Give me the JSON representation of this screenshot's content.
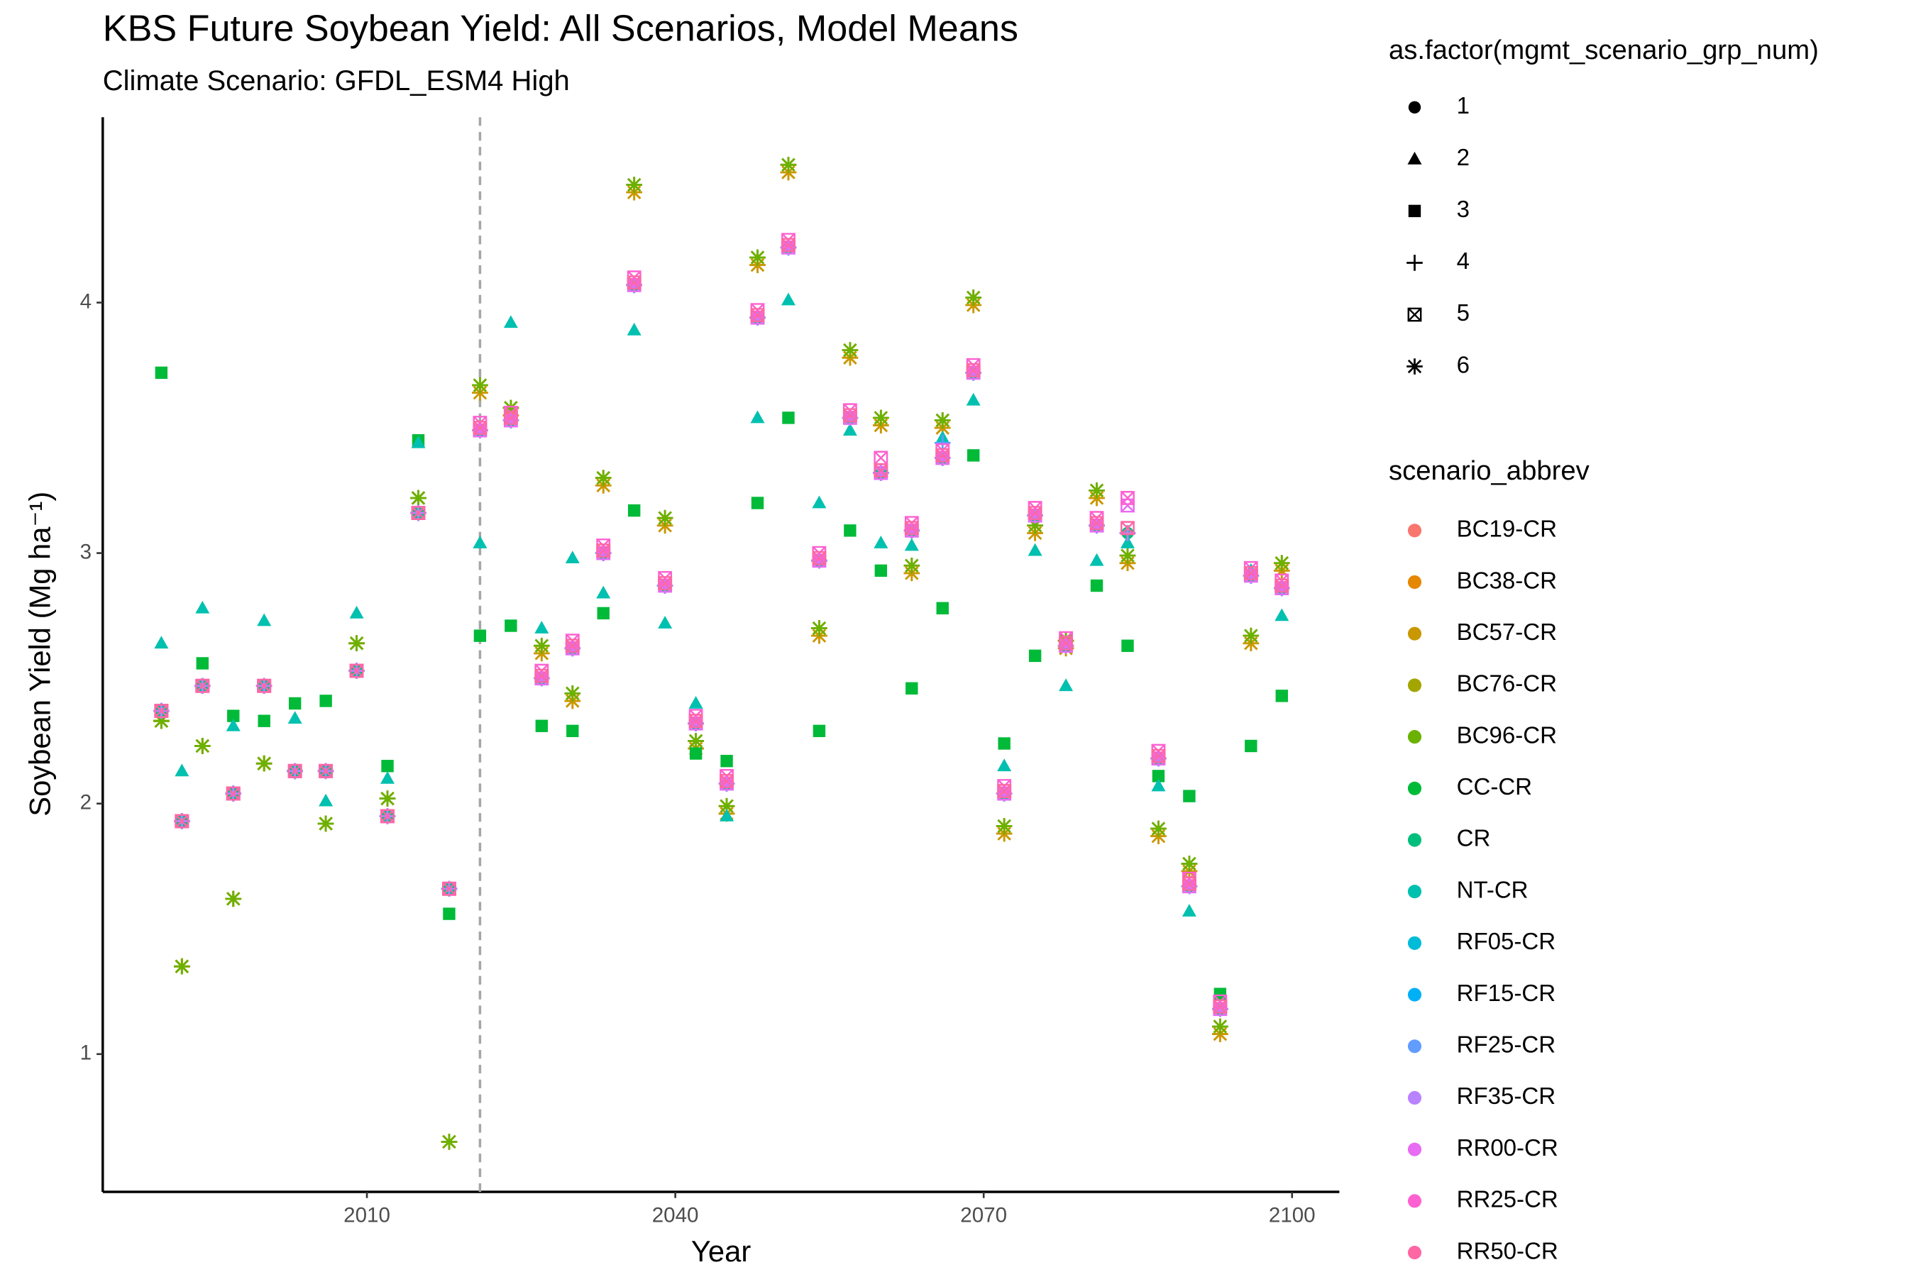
{
  "chart_data": {
    "type": "scatter",
    "title": "KBS Future Soybean Yield: All Scenarios, Model Means",
    "subtitle": "Climate Scenario: GFDL_ESM4 High",
    "x_label": "Year",
    "y_label": "Soybean Yield (Mg ha⁻¹)",
    "xlim": [
      1984.3,
      2104.6
    ],
    "xticks": [
      2010,
      2040,
      2070,
      2100
    ],
    "ylim": [
      0.45,
      4.74
    ],
    "yticks": [
      1,
      2,
      3,
      4
    ],
    "reference_line_x": 2021,
    "shape_legend": {
      "title": "as.factor(mgmt_scenario_grp_num)",
      "labels": [
        "1",
        "2",
        "3",
        "4",
        "5",
        "6"
      ]
    },
    "color_legend_title": "scenario_abbrev",
    "x": [
      1990,
      1992,
      1994,
      1997,
      2000,
      2003,
      2006,
      2009,
      2012,
      2015,
      2018,
      2021,
      2024,
      2027,
      2030,
      2033,
      2036,
      2039,
      2042,
      2045,
      2048,
      2051,
      2054,
      2057,
      2060,
      2063,
      2066,
      2069,
      2072,
      2075,
      2078,
      2081,
      2084,
      2087,
      2090,
      2093,
      2096,
      2099
    ],
    "series": [
      {
        "name": "BC19-CR",
        "color": "#F8766D",
        "shape": "6",
        "values": [
          2.33,
          1.35,
          2.23,
          1.62,
          2.16,
          2.13,
          1.92,
          2.64,
          2.02,
          3.22,
          0.65,
          3.67,
          3.58,
          2.63,
          2.44,
          3.3,
          4.47,
          3.14,
          2.25,
          1.99,
          4.18,
          4.55,
          2.7,
          3.81,
          3.54,
          2.95,
          3.53,
          4.02,
          1.91,
          3.11,
          2.65,
          3.25,
          2.99,
          1.9,
          1.76,
          1.11,
          2.67,
          2.96
        ]
      },
      {
        "name": "BC38-CR",
        "color": "#E58700",
        "shape": "6",
        "values": [
          2.33,
          1.35,
          2.23,
          1.62,
          2.16,
          2.13,
          1.92,
          2.64,
          2.02,
          3.22,
          0.65,
          3.64,
          3.55,
          2.6,
          2.41,
          3.27,
          4.44,
          3.11,
          2.22,
          1.96,
          4.15,
          4.52,
          2.67,
          3.78,
          3.51,
          2.92,
          3.5,
          3.99,
          1.88,
          3.08,
          2.62,
          3.22,
          2.96,
          1.87,
          1.73,
          1.08,
          2.64,
          2.93
        ]
      },
      {
        "name": "BC57-CR",
        "color": "#C99800",
        "shape": "6",
        "values": [
          2.33,
          1.35,
          2.23,
          1.62,
          2.16,
          2.13,
          1.92,
          2.64,
          2.02,
          3.22,
          0.65,
          3.64,
          3.55,
          2.6,
          2.41,
          3.27,
          4.44,
          3.11,
          2.22,
          1.96,
          4.15,
          4.52,
          2.67,
          3.78,
          3.51,
          2.92,
          3.5,
          3.99,
          1.88,
          3.08,
          2.62,
          3.22,
          2.96,
          1.87,
          1.73,
          1.08,
          2.64,
          2.93
        ]
      },
      {
        "name": "BC76-CR",
        "color": "#A3A500",
        "shape": "6",
        "values": [
          2.33,
          1.35,
          2.23,
          1.62,
          2.16,
          2.13,
          1.92,
          2.64,
          2.02,
          3.22,
          0.65,
          3.67,
          3.58,
          2.63,
          2.44,
          3.3,
          4.47,
          3.14,
          2.25,
          1.99,
          4.18,
          4.55,
          2.7,
          3.81,
          3.54,
          2.95,
          3.53,
          4.02,
          1.91,
          3.11,
          2.65,
          3.25,
          2.99,
          1.9,
          1.76,
          1.11,
          2.67,
          2.96
        ]
      },
      {
        "name": "BC96-CR",
        "color": "#6BB100",
        "shape": "6",
        "values": [
          2.33,
          1.35,
          2.23,
          1.62,
          2.16,
          2.13,
          1.92,
          2.64,
          2.02,
          3.22,
          0.65,
          3.67,
          3.58,
          2.63,
          2.44,
          3.3,
          4.47,
          3.14,
          2.25,
          1.99,
          4.18,
          4.55,
          2.7,
          3.81,
          3.54,
          2.95,
          3.53,
          4.02,
          1.91,
          3.11,
          2.65,
          3.25,
          2.99,
          1.9,
          1.76,
          1.11,
          2.67,
          2.96
        ]
      },
      {
        "name": "CC-CR",
        "color": "#00BA38",
        "shape": "3",
        "values": [
          3.72,
          null,
          2.56,
          2.35,
          2.33,
          2.4,
          2.41,
          null,
          2.15,
          3.45,
          1.56,
          2.67,
          2.71,
          2.31,
          2.29,
          2.76,
          3.17,
          null,
          2.2,
          2.17,
          3.2,
          3.54,
          2.29,
          3.09,
          2.93,
          2.46,
          2.78,
          3.39,
          2.24,
          2.59,
          null,
          2.87,
          2.63,
          2.11,
          2.03,
          1.24,
          2.23,
          2.43
        ]
      },
      {
        "name": "CR",
        "color": "#00BF7D",
        "shape": "1",
        "values": [
          2.37,
          1.93,
          2.47,
          2.04,
          2.47,
          2.13,
          2.13,
          2.53,
          1.95,
          3.16,
          1.66,
          3.49,
          3.53,
          2.5,
          2.62,
          3.0,
          4.07,
          2.87,
          2.32,
          2.08,
          3.94,
          4.22,
          2.97,
          3.54,
          3.32,
          3.09,
          3.38,
          3.72,
          2.04,
          3.15,
          2.63,
          3.11,
          3.08,
          2.18,
          1.67,
          1.18,
          2.91,
          2.86
        ]
      },
      {
        "name": "NT-CR",
        "color": "#00C0AF",
        "shape": "2",
        "values": [
          2.64,
          2.13,
          2.78,
          2.31,
          2.73,
          2.34,
          2.01,
          2.76,
          2.1,
          3.44,
          null,
          3.04,
          3.92,
          2.7,
          2.98,
          2.84,
          3.89,
          2.72,
          2.4,
          1.95,
          3.54,
          4.01,
          3.2,
          3.49,
          3.04,
          3.03,
          3.46,
          3.61,
          2.15,
          3.01,
          2.47,
          2.97,
          3.04,
          2.07,
          1.57,
          1.19,
          2.93,
          2.75
        ]
      },
      {
        "name": "RF05-CR",
        "color": "#00BCD8",
        "shape": "4",
        "values": [
          2.37,
          1.93,
          2.47,
          2.04,
          2.47,
          2.13,
          2.13,
          2.53,
          1.95,
          3.16,
          1.66,
          3.49,
          3.53,
          2.5,
          2.62,
          3.0,
          4.07,
          2.87,
          2.32,
          2.08,
          3.94,
          4.22,
          2.97,
          3.54,
          3.32,
          3.09,
          3.38,
          3.72,
          2.04,
          3.15,
          2.63,
          3.11,
          3.08,
          2.18,
          1.67,
          1.18,
          2.91,
          2.86
        ]
      },
      {
        "name": "RF15-CR",
        "color": "#00B0F6",
        "shape": "4",
        "values": [
          2.37,
          1.93,
          2.47,
          2.04,
          2.47,
          2.13,
          2.13,
          2.53,
          1.95,
          3.16,
          1.66,
          3.49,
          3.53,
          2.5,
          2.62,
          3.0,
          4.07,
          2.87,
          2.32,
          2.08,
          3.94,
          4.22,
          2.97,
          3.54,
          3.32,
          3.09,
          3.38,
          3.72,
          2.04,
          3.15,
          2.63,
          3.11,
          3.08,
          2.18,
          1.67,
          1.18,
          2.91,
          2.86
        ]
      },
      {
        "name": "RF25-CR",
        "color": "#619CFF",
        "shape": "4",
        "values": [
          2.37,
          1.93,
          2.47,
          2.04,
          2.47,
          2.13,
          2.13,
          2.53,
          1.95,
          3.16,
          1.66,
          3.49,
          3.53,
          2.5,
          2.62,
          3.0,
          4.07,
          2.87,
          2.32,
          2.08,
          3.94,
          4.22,
          2.97,
          3.54,
          3.32,
          3.09,
          3.44,
          3.72,
          2.04,
          3.15,
          2.63,
          3.11,
          3.08,
          2.18,
          1.67,
          1.18,
          2.91,
          2.86
        ]
      },
      {
        "name": "RF35-CR",
        "color": "#B983FF",
        "shape": "4",
        "values": [
          2.37,
          1.93,
          2.47,
          2.04,
          2.47,
          2.13,
          2.13,
          2.53,
          1.95,
          3.16,
          1.66,
          3.49,
          3.53,
          2.5,
          2.62,
          3.0,
          4.07,
          2.87,
          2.32,
          2.08,
          3.94,
          4.22,
          2.97,
          3.54,
          3.32,
          3.09,
          3.38,
          3.72,
          2.04,
          3.15,
          2.63,
          3.11,
          3.08,
          2.18,
          1.67,
          1.18,
          2.91,
          2.86
        ]
      },
      {
        "name": "RR00-CR",
        "color": "#E76BF3",
        "shape": "5",
        "values": [
          2.37,
          1.93,
          2.47,
          2.04,
          2.47,
          2.13,
          2.13,
          2.53,
          1.95,
          3.16,
          1.66,
          3.49,
          3.53,
          2.5,
          2.62,
          3.0,
          4.07,
          2.87,
          2.32,
          2.08,
          3.94,
          4.22,
          2.97,
          3.54,
          3.32,
          3.09,
          3.38,
          3.72,
          2.04,
          3.15,
          2.63,
          3.11,
          3.19,
          2.18,
          1.67,
          1.18,
          2.91,
          2.86
        ]
      },
      {
        "name": "RR25-CR",
        "color": "#FD61D1",
        "shape": "5",
        "values": [
          2.37,
          1.93,
          2.47,
          2.04,
          2.47,
          2.13,
          2.13,
          2.53,
          1.95,
          3.16,
          1.66,
          3.52,
          3.56,
          2.53,
          2.65,
          3.03,
          4.1,
          2.9,
          2.35,
          2.11,
          3.97,
          4.25,
          3.0,
          3.57,
          3.38,
          3.12,
          3.41,
          3.75,
          2.07,
          3.18,
          2.66,
          3.14,
          3.22,
          2.21,
          1.7,
          1.21,
          2.94,
          2.89
        ]
      },
      {
        "name": "RR50-CR",
        "color": "#FF67A4",
        "shape": "5",
        "values": [
          2.37,
          1.93,
          2.47,
          2.04,
          2.47,
          2.13,
          2.13,
          2.53,
          1.95,
          3.16,
          1.66,
          3.5,
          3.54,
          2.51,
          2.63,
          3.01,
          4.08,
          2.88,
          2.33,
          2.09,
          3.95,
          4.23,
          2.98,
          3.55,
          3.33,
          3.1,
          3.39,
          3.73,
          2.05,
          3.16,
          2.64,
          3.12,
          3.1,
          2.19,
          1.68,
          1.19,
          2.92,
          2.87
        ]
      }
    ]
  }
}
